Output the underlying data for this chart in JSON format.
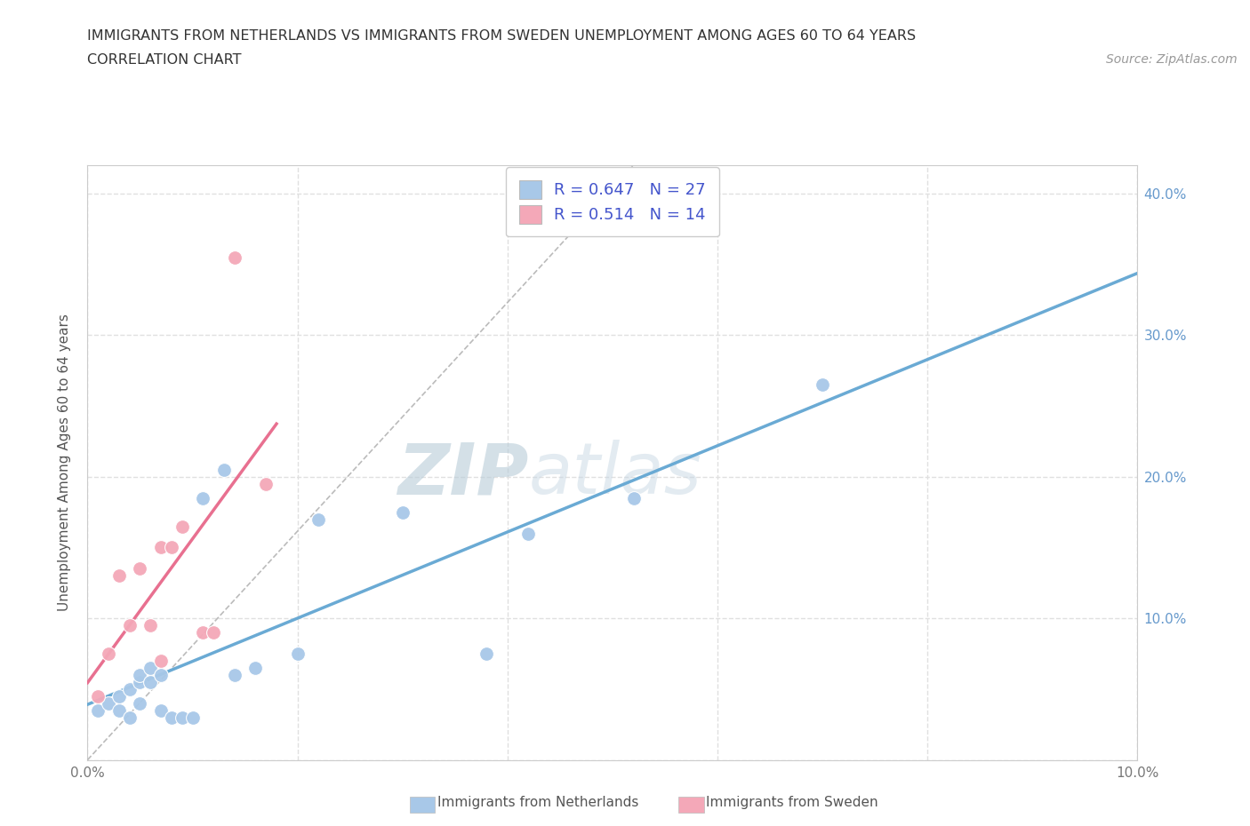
{
  "title_line1": "IMMIGRANTS FROM NETHERLANDS VS IMMIGRANTS FROM SWEDEN UNEMPLOYMENT AMONG AGES 60 TO 64 YEARS",
  "title_line2": "CORRELATION CHART",
  "source_text": "Source: ZipAtlas.com",
  "ylabel": "Unemployment Among Ages 60 to 64 years",
  "xlim": [
    0.0,
    0.1
  ],
  "ylim": [
    0.0,
    0.42
  ],
  "xticks": [
    0.0,
    0.02,
    0.04,
    0.06,
    0.08,
    0.1
  ],
  "yticks": [
    0.0,
    0.1,
    0.2,
    0.3,
    0.4
  ],
  "ytick_labels_left": [
    "0.0%",
    "10.0%",
    "20.0%",
    "30.0%",
    "40.0%"
  ],
  "ytick_labels_right": [
    "",
    "10.0%",
    "20.0%",
    "30.0%",
    "40.0%"
  ],
  "xtick_labels": [
    "0.0%",
    "",
    "",
    "",
    "",
    "10.0%"
  ],
  "netherlands_color": "#a8c8e8",
  "netherlands_line_color": "#6aaad4",
  "sweden_color": "#f4a8b8",
  "sweden_line_color": "#e87090",
  "netherlands_R": 0.647,
  "netherlands_N": 27,
  "sweden_R": 0.514,
  "sweden_N": 14,
  "legend_R_color": "#4455cc",
  "netherlands_x": [
    0.001,
    0.002,
    0.003,
    0.003,
    0.004,
    0.004,
    0.005,
    0.005,
    0.005,
    0.006,
    0.006,
    0.007,
    0.007,
    0.008,
    0.009,
    0.01,
    0.011,
    0.013,
    0.014,
    0.016,
    0.02,
    0.022,
    0.03,
    0.038,
    0.042,
    0.052,
    0.07
  ],
  "netherlands_y": [
    0.035,
    0.04,
    0.045,
    0.035,
    0.03,
    0.05,
    0.04,
    0.055,
    0.06,
    0.055,
    0.065,
    0.06,
    0.035,
    0.03,
    0.03,
    0.03,
    0.185,
    0.205,
    0.06,
    0.065,
    0.075,
    0.17,
    0.175,
    0.075,
    0.16,
    0.185,
    0.265
  ],
  "sweden_x": [
    0.001,
    0.002,
    0.003,
    0.004,
    0.005,
    0.006,
    0.007,
    0.007,
    0.008,
    0.009,
    0.011,
    0.012,
    0.014,
    0.017
  ],
  "sweden_y": [
    0.045,
    0.075,
    0.13,
    0.095,
    0.135,
    0.095,
    0.07,
    0.15,
    0.15,
    0.165,
    0.09,
    0.09,
    0.355,
    0.195
  ],
  "watermark_zip": "ZIP",
  "watermark_atlas": "atlas",
  "watermark_color": "#ccdde8",
  "background_color": "#ffffff",
  "grid_color": "#e0e0e0",
  "grid_style": "--"
}
